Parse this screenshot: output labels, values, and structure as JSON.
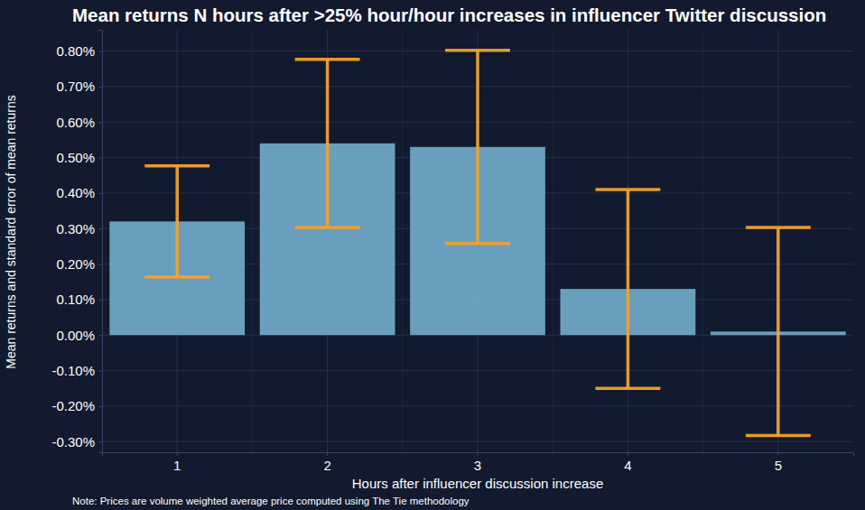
{
  "chart_data": {
    "type": "bar",
    "title": "Mean returns N hours after >25% hour/hour increases in influencer Twitter discussion",
    "x_label": "Hours after influencer discussion increase",
    "y_label": "Mean returns and standard error of mean returns",
    "note": "Note: Prices are volume weighted average price computed using The Tie methodology",
    "categories": [
      "1",
      "2",
      "3",
      "4",
      "5"
    ],
    "values": [
      0.32,
      0.54,
      0.53,
      0.13,
      0.01
    ],
    "errors": [
      0.157,
      0.237,
      0.272,
      0.28,
      0.293
    ],
    "color": "#6fa6c4",
    "error_color": "#f2a12e",
    "ylim": [
      -0.33,
      0.86
    ],
    "yticks": [
      {
        "value": -0.3,
        "label": "-0.30%"
      },
      {
        "value": -0.2,
        "label": "-0.20%"
      },
      {
        "value": -0.1,
        "label": "-0.10%"
      },
      {
        "value": 0,
        "label": "0.00%"
      },
      {
        "value": 0.1,
        "label": "0.10%"
      },
      {
        "value": 0.2,
        "label": "0.20%"
      },
      {
        "value": 0.3,
        "label": "0.30%"
      },
      {
        "value": 0.4,
        "label": "0.40%"
      },
      {
        "value": 0.5,
        "label": "0.50%"
      },
      {
        "value": 0.6,
        "label": "0.60%"
      },
      {
        "value": 0.7,
        "label": "0.70%"
      },
      {
        "value": 0.8,
        "label": "0.80%"
      }
    ],
    "grid": true
  }
}
